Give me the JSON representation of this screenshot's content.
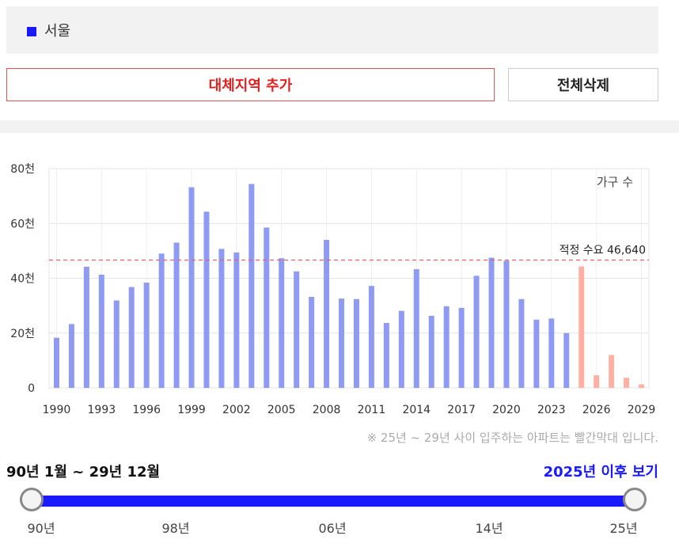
{
  "legend": {
    "label": "서울",
    "color": "#1a1aff"
  },
  "buttons": {
    "add_region": "대체지역 추가",
    "delete_all": "전체삭제"
  },
  "note": "※ 25년 ~ 29년 사이 입주하는 아파트는 빨간막대 입니다.",
  "period": {
    "label": "90년 1월 ~ 29년 12월",
    "after_link": "2025년 이후 보기"
  },
  "slider": {
    "ticks": [
      "90년",
      "98년",
      "06년",
      "14년",
      "25년"
    ]
  },
  "chart_data": {
    "type": "bar",
    "y_axis_label": "가구 수",
    "ylim": [
      0,
      80000
    ],
    "y_ticks": [
      {
        "value": 0,
        "label": "0"
      },
      {
        "value": 20000,
        "label": "20천"
      },
      {
        "value": 40000,
        "label": "40천"
      },
      {
        "value": 60000,
        "label": "60천"
      },
      {
        "value": 80000,
        "label": "80천"
      }
    ],
    "x_tick_labels": [
      "1990",
      "1993",
      "1996",
      "1999",
      "2002",
      "2005",
      "2008",
      "2011",
      "2014",
      "2017",
      "2020",
      "2023",
      "2026",
      "2029"
    ],
    "grid": true,
    "categories": [
      1990,
      1991,
      1992,
      1993,
      1994,
      1995,
      1996,
      1997,
      1998,
      1999,
      2000,
      2001,
      2002,
      2003,
      2004,
      2005,
      2006,
      2007,
      2008,
      2009,
      2010,
      2011,
      2012,
      2013,
      2014,
      2015,
      2016,
      2017,
      2018,
      2019,
      2020,
      2021,
      2022,
      2023,
      2024,
      2025,
      2026,
      2027,
      2028,
      2029
    ],
    "values": [
      18300,
      23300,
      44200,
      41300,
      31900,
      36800,
      38400,
      49000,
      53000,
      73200,
      64300,
      50700,
      49400,
      74400,
      58500,
      47300,
      42500,
      33200,
      54000,
      32600,
      32400,
      37200,
      23700,
      28100,
      43300,
      26300,
      29800,
      29200,
      40900,
      47500,
      46400,
      32400,
      24900,
      25300,
      20000,
      44300,
      4600,
      12000,
      3700,
      1300
    ],
    "highlight_from": 2025,
    "colors": {
      "normal": "#8f9bf2",
      "future": "#ffb0a3",
      "reference": "#e86060"
    },
    "reference_line": {
      "value": 46640,
      "label": "적정 수요 46,640"
    }
  }
}
